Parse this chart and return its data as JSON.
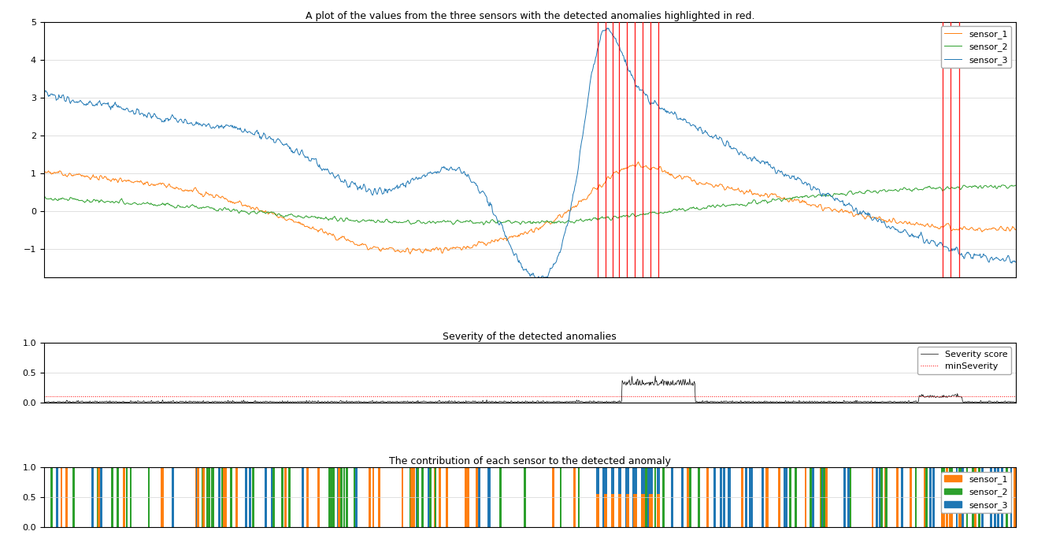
{
  "title_main": "A plot of the values from the three sensors with the detected anomalies highlighted in red.",
  "title_severity": "Severity of the detected anomalies",
  "title_contribution": "The contribution of each sensor to the detected anomaly",
  "sensor_colors": [
    "#ff7f0e",
    "#2ca02c",
    "#1f77b4"
  ],
  "sensor_labels": [
    "sensor_1",
    "sensor_2",
    "sensor_3"
  ],
  "anomaly_color": "red",
  "severity_line_color": "black",
  "severity_threshold_color": "red",
  "severity_threshold": 0.1,
  "ylim_main": [
    -1.75,
    5.0
  ],
  "ylim_severity": [
    0.0,
    1.0
  ],
  "ylim_contribution": [
    0.0,
    1.0
  ],
  "n_points": 1500,
  "anomaly_cluster1": [
    0.57,
    0.578,
    0.585,
    0.592,
    0.6,
    0.608,
    0.616,
    0.624,
    0.632
  ],
  "anomaly_cluster2": [
    0.925,
    0.933,
    0.942
  ],
  "yticks_main": [
    -1,
    0,
    1,
    2,
    3,
    4,
    5
  ],
  "yticks_severity": [
    0.0,
    0.5,
    1.0
  ],
  "yticks_contribution": [
    0.0,
    0.5,
    1.0
  ]
}
